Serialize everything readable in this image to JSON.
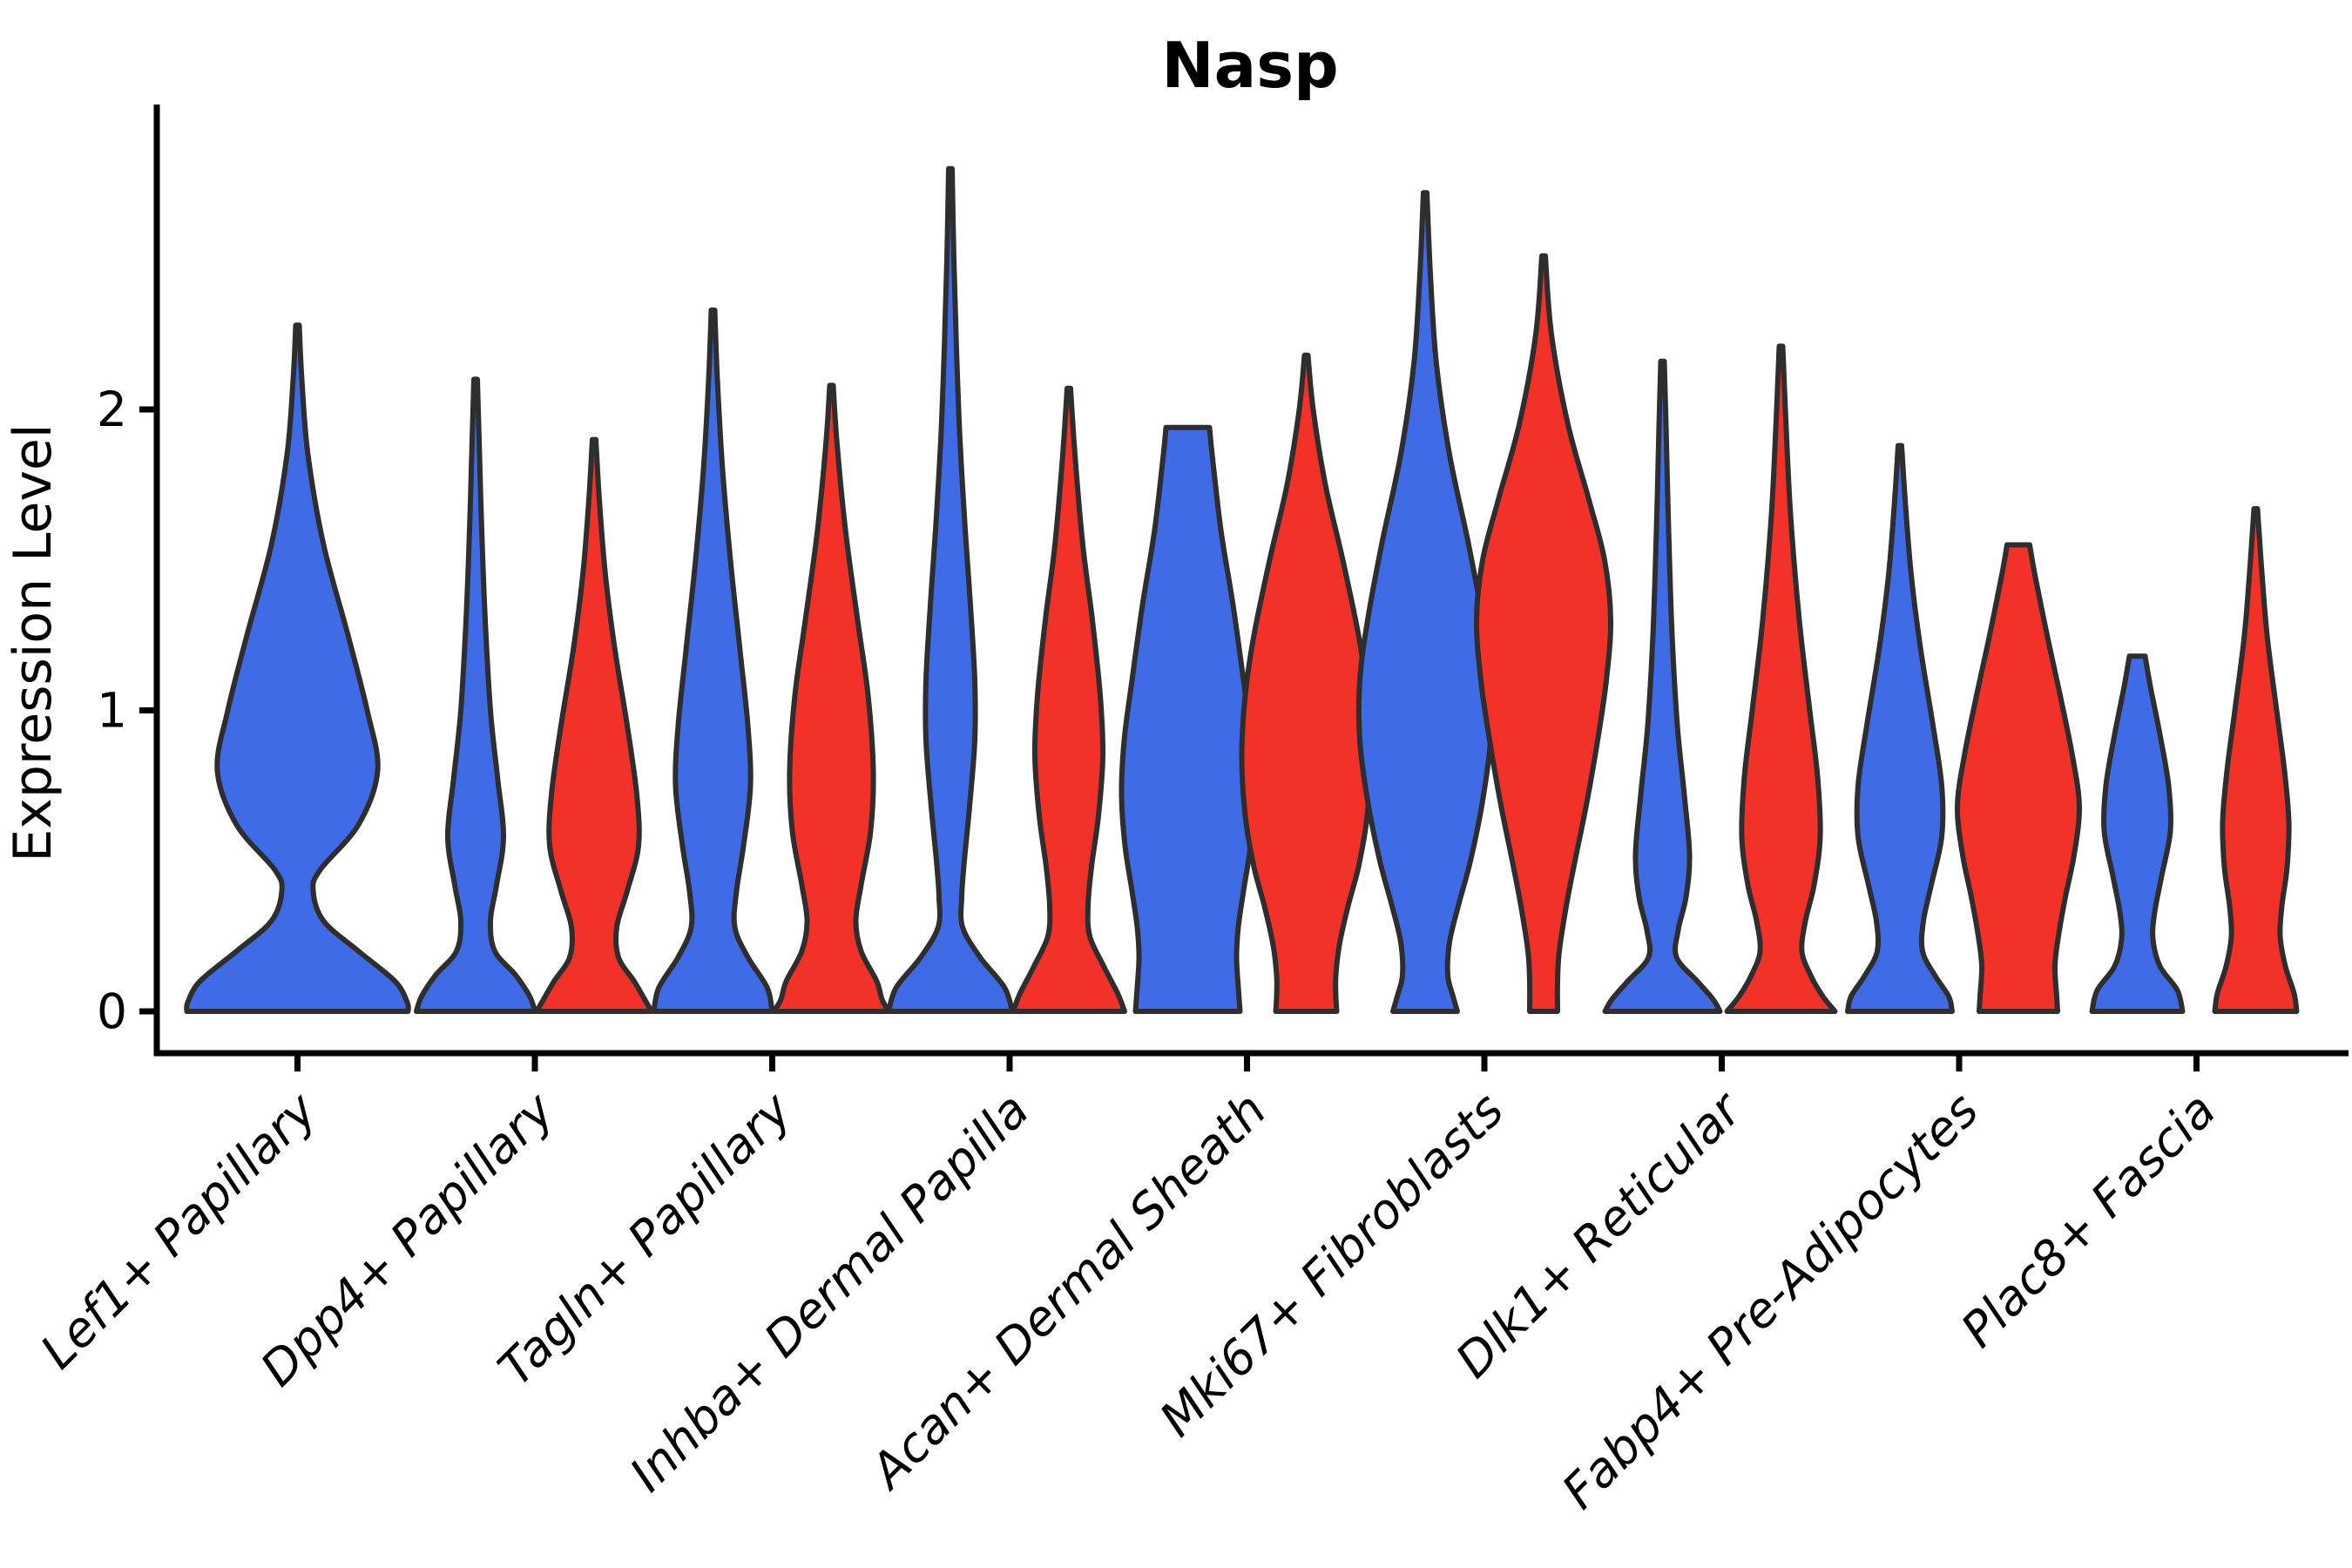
{
  "figure": {
    "title": "Nasp",
    "background": "#FFFFFF"
  },
  "style": {
    "blue_fill": "#3F6BE6",
    "red_fill": "#F23128",
    "violin_outline": "#2E2E2E",
    "axis_color": "#000000",
    "text_color": "#000000"
  },
  "chart_data": {
    "type": "violin",
    "title": "Nasp",
    "ylabel": "Expression Level",
    "xlabel": "",
    "yticks": [
      0,
      1,
      2
    ],
    "ylim": [
      -0.15,
      3.0
    ],
    "grid": "off",
    "legend": "none",
    "split_groups": [
      {
        "name": "group-blue",
        "color": "#3F6BE6"
      },
      {
        "name": "group-red",
        "color": "#F23128"
      }
    ],
    "categories": [
      "Lef1+ Papillary",
      "Dpp4+ Papillary",
      "Tagln+ Papillary",
      "Inhba+ Dermal Papilla",
      "Acan+ Dermal Sheath",
      "Mki67+ Fibroblasts",
      "Dlk1+ Reticular",
      "Fabp4+ Pre-Adipocytes",
      "Plac8+ Fascia"
    ],
    "violins": [
      {
        "category": "Lef1+ Papillary",
        "group": "group-blue",
        "side": 0,
        "peak": 2.28,
        "profile": [
          [
            2.28,
            2
          ],
          [
            2.1,
            5
          ],
          [
            1.85,
            12
          ],
          [
            1.55,
            30
          ],
          [
            1.25,
            58
          ],
          [
            1.0,
            80
          ],
          [
            0.8,
            92
          ],
          [
            0.62,
            70
          ],
          [
            0.47,
            26
          ],
          [
            0.4,
            18
          ],
          [
            0.3,
            30
          ],
          [
            0.2,
            70
          ],
          [
            0.1,
            112
          ],
          [
            0.03,
            126
          ],
          [
            0,
            127
          ]
        ]
      },
      {
        "category": "Dpp4+ Papillary",
        "group": "group-blue",
        "side": -1,
        "peak": 2.1,
        "profile": [
          [
            2.1,
            2
          ],
          [
            1.9,
            4
          ],
          [
            1.6,
            7
          ],
          [
            1.3,
            11
          ],
          [
            1.0,
            17
          ],
          [
            0.78,
            25
          ],
          [
            0.58,
            32
          ],
          [
            0.42,
            24
          ],
          [
            0.3,
            17
          ],
          [
            0.2,
            22
          ],
          [
            0.12,
            46
          ],
          [
            0.05,
            62
          ],
          [
            0,
            68
          ]
        ]
      },
      {
        "category": "Dpp4+ Papillary",
        "group": "group-red",
        "side": 1,
        "peak": 1.9,
        "profile": [
          [
            1.9,
            2
          ],
          [
            1.7,
            6
          ],
          [
            1.45,
            13
          ],
          [
            1.2,
            24
          ],
          [
            0.95,
            38
          ],
          [
            0.72,
            49
          ],
          [
            0.55,
            51
          ],
          [
            0.4,
            38
          ],
          [
            0.28,
            26
          ],
          [
            0.18,
            28
          ],
          [
            0.1,
            46
          ],
          [
            0.04,
            58
          ],
          [
            0,
            66
          ]
        ]
      },
      {
        "category": "Tagln+ Papillary",
        "group": "group-blue",
        "side": -1,
        "peak": 2.33,
        "profile": [
          [
            2.33,
            2
          ],
          [
            2.1,
            5
          ],
          [
            1.8,
            11
          ],
          [
            1.5,
            20
          ],
          [
            1.2,
            31
          ],
          [
            0.95,
            40
          ],
          [
            0.75,
            43
          ],
          [
            0.55,
            35
          ],
          [
            0.4,
            27
          ],
          [
            0.28,
            25
          ],
          [
            0.18,
            40
          ],
          [
            0.08,
            62
          ],
          [
            0,
            68
          ]
        ]
      },
      {
        "category": "Tagln+ Papillary",
        "group": "group-red",
        "side": 1,
        "peak": 2.08,
        "profile": [
          [
            2.08,
            2
          ],
          [
            1.9,
            6
          ],
          [
            1.6,
            16
          ],
          [
            1.3,
            30
          ],
          [
            1.05,
            42
          ],
          [
            0.8,
            48
          ],
          [
            0.6,
            45
          ],
          [
            0.42,
            34
          ],
          [
            0.3,
            28
          ],
          [
            0.2,
            34
          ],
          [
            0.1,
            52
          ],
          [
            0.04,
            58
          ],
          [
            0,
            66
          ]
        ]
      },
      {
        "category": "Inhba+ Dermal Papilla",
        "group": "group-blue",
        "side": -1,
        "peak": 2.8,
        "profile": [
          [
            2.8,
            2
          ],
          [
            2.5,
            4
          ],
          [
            2.2,
            7
          ],
          [
            1.9,
            11
          ],
          [
            1.6,
            17
          ],
          [
            1.35,
            23
          ],
          [
            1.1,
            28
          ],
          [
            0.9,
            28
          ],
          [
            0.68,
            22
          ],
          [
            0.5,
            16
          ],
          [
            0.38,
            13
          ],
          [
            0.28,
            14
          ],
          [
            0.18,
            34
          ],
          [
            0.08,
            62
          ],
          [
            0,
            71
          ]
        ]
      },
      {
        "category": "Inhba+ Dermal Papilla",
        "group": "group-red",
        "side": 1,
        "peak": 2.07,
        "profile": [
          [
            2.07,
            2
          ],
          [
            1.85,
            7
          ],
          [
            1.55,
            16
          ],
          [
            1.3,
            27
          ],
          [
            1.05,
            36
          ],
          [
            0.85,
            39
          ],
          [
            0.65,
            34
          ],
          [
            0.48,
            26
          ],
          [
            0.35,
            22
          ],
          [
            0.25,
            24
          ],
          [
            0.15,
            40
          ],
          [
            0.06,
            56
          ],
          [
            0,
            64
          ]
        ]
      },
      {
        "category": "Acan+ Dermal Sheath",
        "group": "group-blue",
        "side": -1,
        "peak": 1.94,
        "profile": [
          [
            1.94,
            25
          ],
          [
            1.85,
            28
          ],
          [
            1.6,
            38
          ],
          [
            1.35,
            52
          ],
          [
            1.1,
            64
          ],
          [
            0.9,
            73
          ],
          [
            0.72,
            76
          ],
          [
            0.55,
            72
          ],
          [
            0.4,
            64
          ],
          [
            0.28,
            58
          ],
          [
            0.18,
            56
          ],
          [
            0.08,
            58
          ],
          [
            0,
            60
          ]
        ]
      },
      {
        "category": "Acan+ Dermal Sheath",
        "group": "group-red",
        "side": 1,
        "peak": 2.18,
        "profile": [
          [
            2.18,
            2
          ],
          [
            2.0,
            8
          ],
          [
            1.75,
            22
          ],
          [
            1.5,
            42
          ],
          [
            1.25,
            60
          ],
          [
            1.05,
            70
          ],
          [
            0.85,
            74
          ],
          [
            0.65,
            70
          ],
          [
            0.48,
            60
          ],
          [
            0.35,
            48
          ],
          [
            0.22,
            38
          ],
          [
            0.12,
            34
          ],
          [
            0.05,
            34
          ],
          [
            0,
            35
          ]
        ]
      },
      {
        "category": "Mki67+ Fibroblasts",
        "group": "group-blue",
        "side": -1,
        "peak": 2.72,
        "profile": [
          [
            2.72,
            2
          ],
          [
            2.45,
            6
          ],
          [
            2.15,
            13
          ],
          [
            1.85,
            28
          ],
          [
            1.55,
            50
          ],
          [
            1.3,
            66
          ],
          [
            1.1,
            75
          ],
          [
            0.9,
            75
          ],
          [
            0.7,
            66
          ],
          [
            0.5,
            52
          ],
          [
            0.35,
            38
          ],
          [
            0.23,
            28
          ],
          [
            0.12,
            26
          ],
          [
            0.05,
            32
          ],
          [
            0,
            37
          ]
        ]
      },
      {
        "category": "Mki67+ Fibroblasts",
        "group": "group-red",
        "side": 1,
        "peak": 2.51,
        "profile": [
          [
            2.51,
            2
          ],
          [
            2.25,
            9
          ],
          [
            1.95,
            28
          ],
          [
            1.7,
            52
          ],
          [
            1.5,
            70
          ],
          [
            1.3,
            77
          ],
          [
            1.1,
            72
          ],
          [
            0.9,
            62
          ],
          [
            0.7,
            50
          ],
          [
            0.5,
            36
          ],
          [
            0.35,
            26
          ],
          [
            0.2,
            18
          ],
          [
            0.1,
            16
          ],
          [
            0,
            16
          ]
        ]
      },
      {
        "category": "Dlk1+ Reticular",
        "group": "group-blue",
        "side": -1,
        "peak": 2.16,
        "profile": [
          [
            2.16,
            2
          ],
          [
            1.95,
            4
          ],
          [
            1.6,
            7
          ],
          [
            1.25,
            11
          ],
          [
            0.95,
            17
          ],
          [
            0.72,
            25
          ],
          [
            0.52,
            31
          ],
          [
            0.38,
            27
          ],
          [
            0.27,
            18
          ],
          [
            0.18,
            16
          ],
          [
            0.1,
            40
          ],
          [
            0.04,
            58
          ],
          [
            0,
            66
          ]
        ]
      },
      {
        "category": "Dlk1+ Reticular",
        "group": "group-red",
        "side": 1,
        "peak": 2.21,
        "profile": [
          [
            2.21,
            2
          ],
          [
            2.0,
            5
          ],
          [
            1.65,
            11
          ],
          [
            1.3,
            21
          ],
          [
            1.0,
            33
          ],
          [
            0.78,
            42
          ],
          [
            0.58,
            45
          ],
          [
            0.42,
            38
          ],
          [
            0.3,
            28
          ],
          [
            0.2,
            24
          ],
          [
            0.12,
            34
          ],
          [
            0.05,
            48
          ],
          [
            0,
            62
          ]
        ]
      },
      {
        "category": "Fabp4+ Pre-Adipocytes",
        "group": "group-blue",
        "side": -1,
        "peak": 1.88,
        "profile": [
          [
            1.88,
            2
          ],
          [
            1.7,
            6
          ],
          [
            1.45,
            13
          ],
          [
            1.2,
            24
          ],
          [
            0.95,
            38
          ],
          [
            0.75,
            48
          ],
          [
            0.58,
            48
          ],
          [
            0.42,
            36
          ],
          [
            0.3,
            27
          ],
          [
            0.2,
            26
          ],
          [
            0.12,
            40
          ],
          [
            0.05,
            56
          ],
          [
            0,
            60
          ]
        ]
      },
      {
        "category": "Fabp4+ Pre-Adipocytes",
        "group": "group-red",
        "side": 1,
        "peak": 1.55,
        "profile": [
          [
            1.55,
            13
          ],
          [
            1.45,
            19
          ],
          [
            1.25,
            33
          ],
          [
            1.05,
            48
          ],
          [
            0.85,
            62
          ],
          [
            0.68,
            70
          ],
          [
            0.52,
            64
          ],
          [
            0.38,
            54
          ],
          [
            0.25,
            46
          ],
          [
            0.15,
            42
          ],
          [
            0.05,
            44
          ],
          [
            0,
            45
          ]
        ]
      },
      {
        "category": "Plac8+ Fascia",
        "group": "group-blue",
        "side": -1,
        "peak": 1.18,
        "profile": [
          [
            1.18,
            9
          ],
          [
            1.08,
            15
          ],
          [
            0.92,
            26
          ],
          [
            0.75,
            36
          ],
          [
            0.6,
            38
          ],
          [
            0.45,
            28
          ],
          [
            0.33,
            20
          ],
          [
            0.24,
            18
          ],
          [
            0.15,
            26
          ],
          [
            0.07,
            46
          ],
          [
            0,
            52
          ]
        ]
      },
      {
        "category": "Plac8+ Fascia",
        "group": "group-red",
        "side": 1,
        "peak": 1.67,
        "profile": [
          [
            1.67,
            2
          ],
          [
            1.5,
            6
          ],
          [
            1.25,
            13
          ],
          [
            1.0,
            24
          ],
          [
            0.8,
            33
          ],
          [
            0.63,
            38
          ],
          [
            0.48,
            36
          ],
          [
            0.35,
            30
          ],
          [
            0.25,
            28
          ],
          [
            0.15,
            34
          ],
          [
            0.06,
            44
          ],
          [
            0,
            47
          ]
        ]
      }
    ]
  }
}
